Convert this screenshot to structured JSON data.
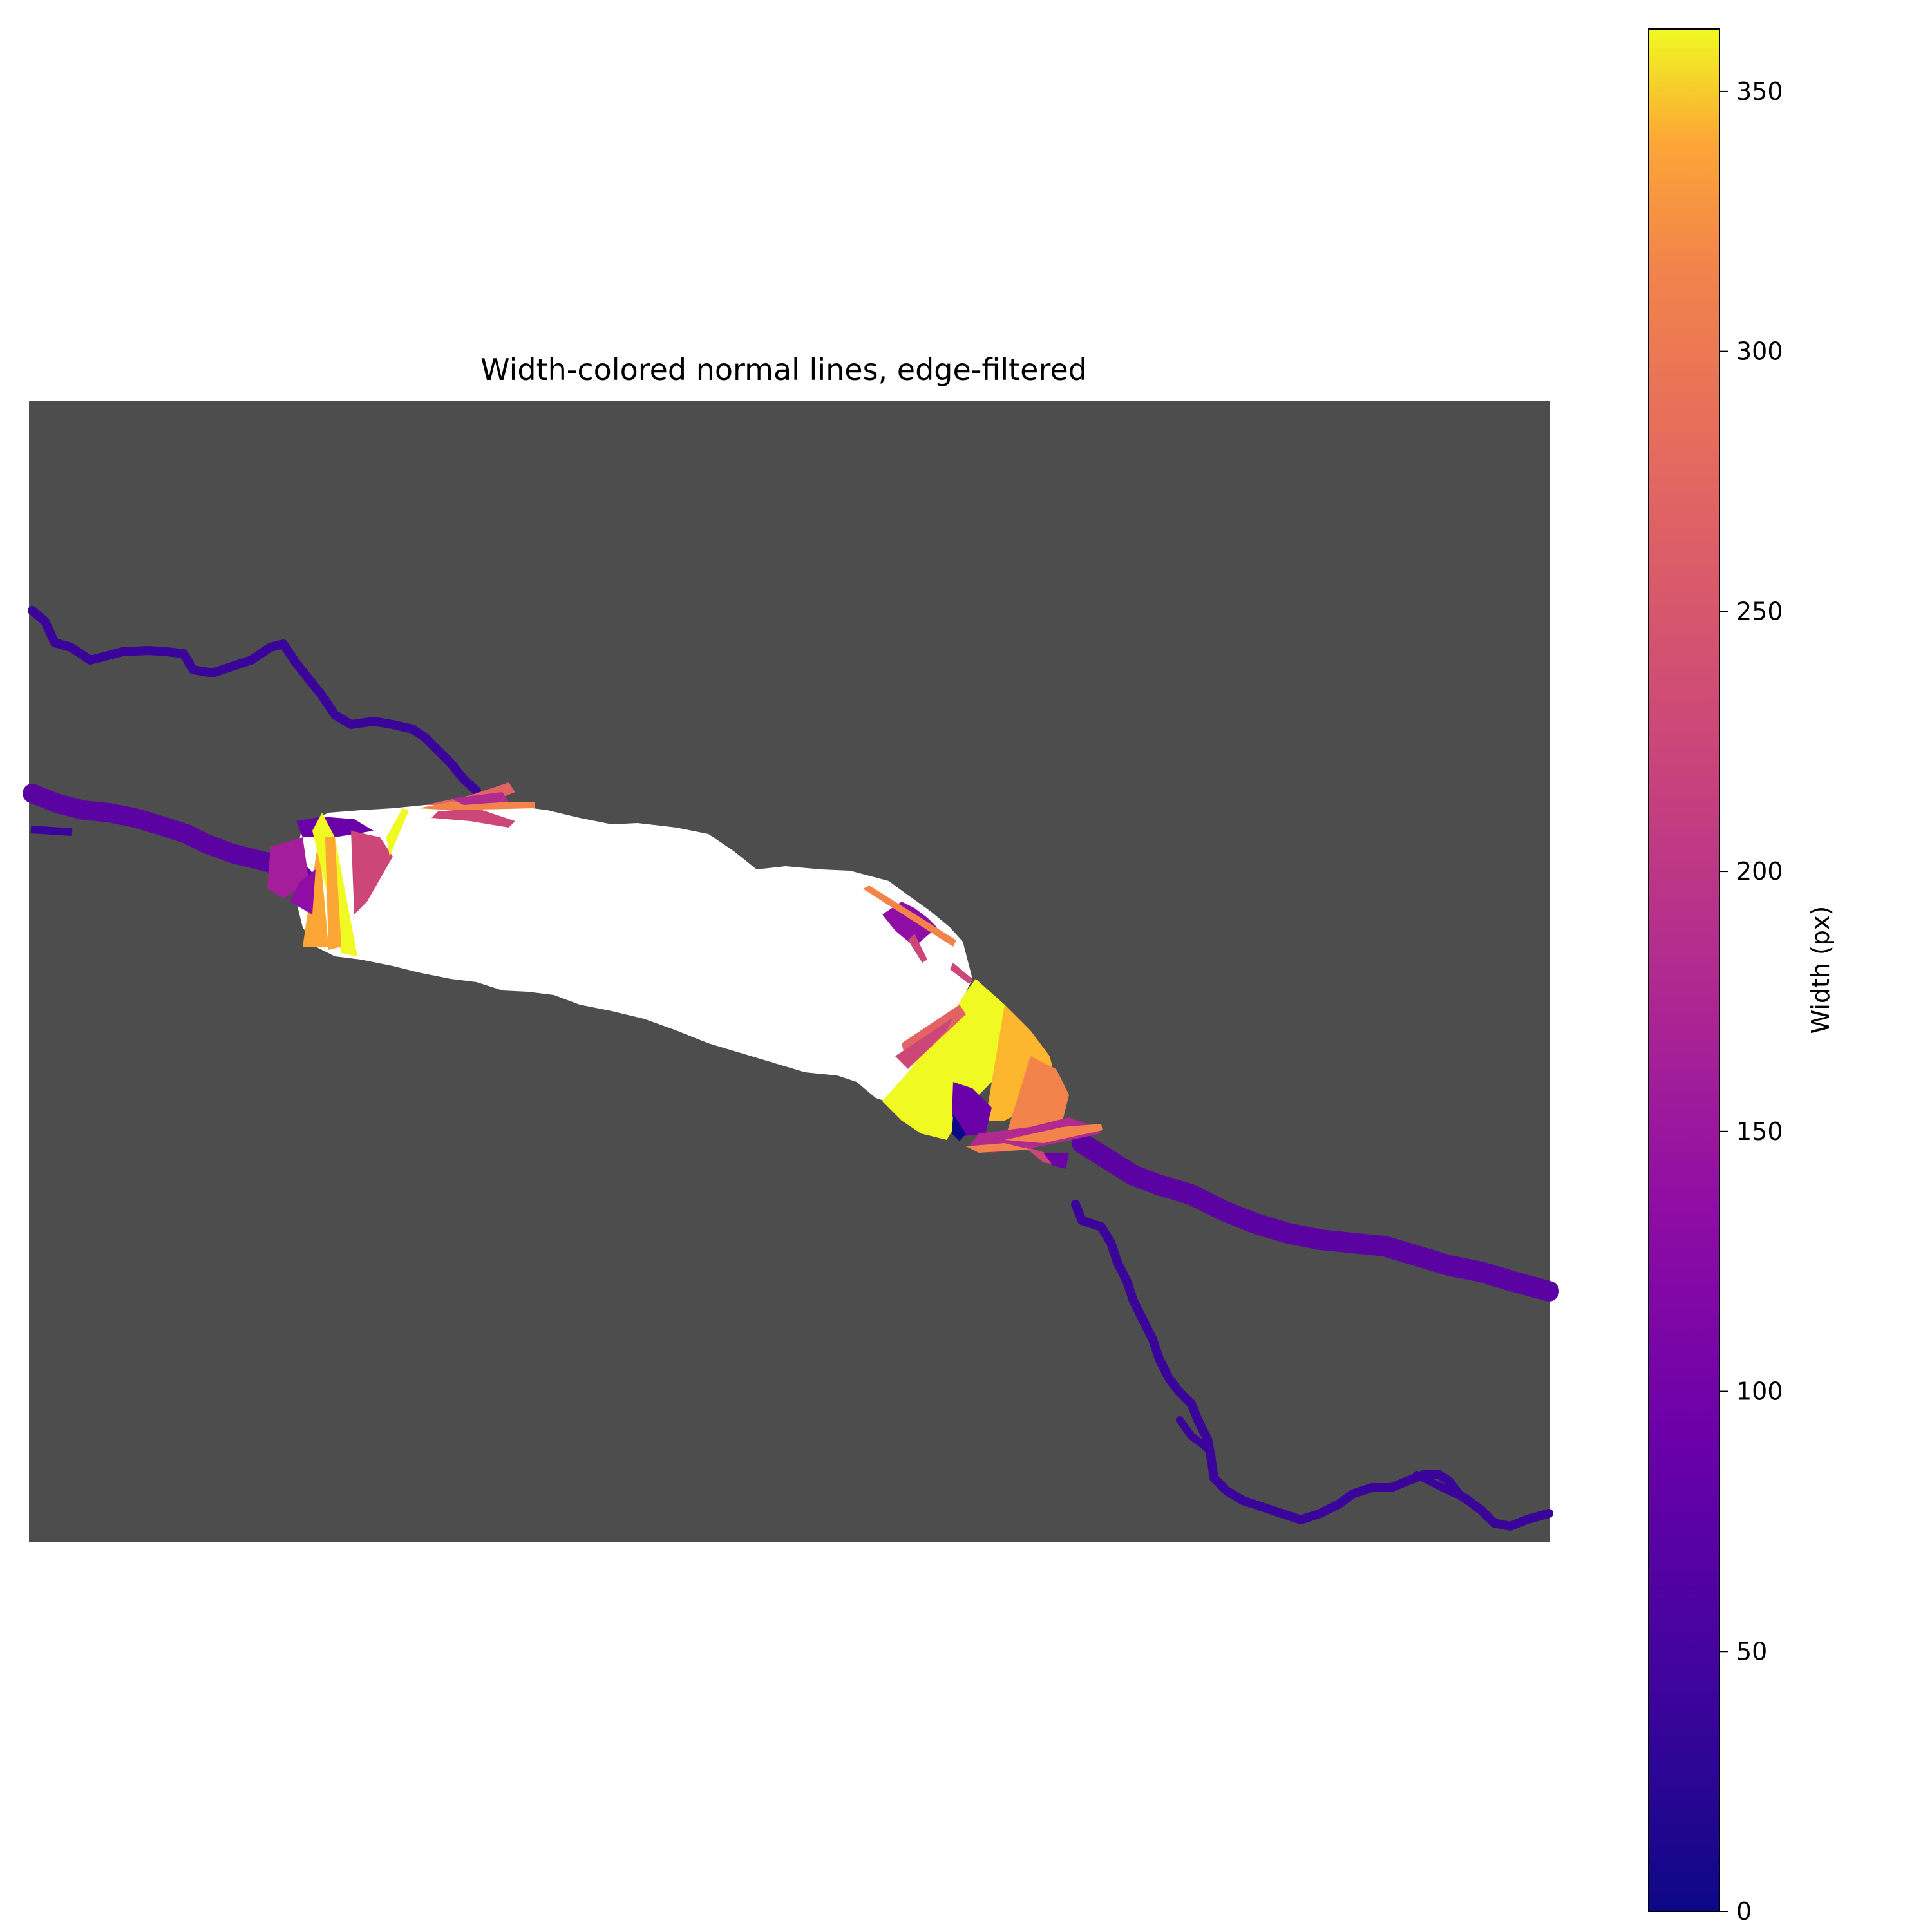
{
  "chart_data": {
    "type": "heatmap",
    "title": "Width-colored normal lines, edge-filtered",
    "xlabel": "",
    "ylabel": "",
    "axes_visible": false,
    "background_color": "#4d4d4d",
    "colormap": "plasma",
    "colorbar": {
      "label": "Width (px)",
      "vmin": 0,
      "vmax": 362,
      "ticks": [
        0,
        50,
        100,
        150,
        200,
        250,
        300,
        350
      ],
      "placement": "right"
    }
  }
}
